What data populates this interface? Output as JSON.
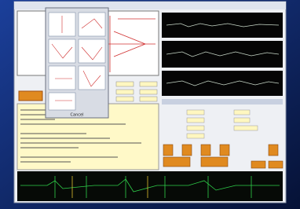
{
  "popup": {
    "cancel": "Cancel"
  }
}
